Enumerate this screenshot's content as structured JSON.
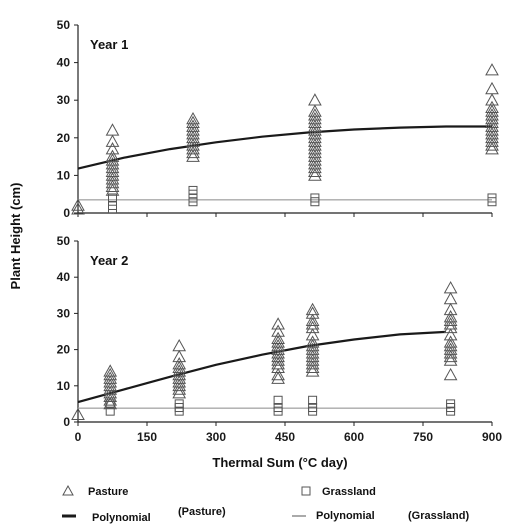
{
  "chart_data": {
    "type": "scatter",
    "xlabel": "Thermal Sum (°C day)",
    "ylabel": "Plant Height (cm)",
    "xlim": [
      0,
      900
    ],
    "ylim": [
      0,
      50
    ],
    "xticks": [
      "0",
      "150",
      "300",
      "450",
      "600",
      "750",
      "900"
    ],
    "yticks": [
      "0",
      "10",
      "20",
      "30",
      "40",
      "50"
    ],
    "panels": [
      {
        "title": "Year 1",
        "series": [
          {
            "name": "Pasture",
            "marker": "triangle",
            "points": [
              [
                0,
                2
              ],
              [
                0,
                1
              ],
              [
                75,
                22
              ],
              [
                75,
                19
              ],
              [
                75,
                17
              ],
              [
                75,
                15
              ],
              [
                75,
                14
              ],
              [
                75,
                13
              ],
              [
                75,
                12
              ],
              [
                75,
                11
              ],
              [
                75,
                10
              ],
              [
                75,
                9
              ],
              [
                75,
                8
              ],
              [
                75,
                7
              ],
              [
                75,
                6
              ],
              [
                250,
                25
              ],
              [
                250,
                24
              ],
              [
                250,
                23
              ],
              [
                250,
                22
              ],
              [
                250,
                21
              ],
              [
                250,
                20
              ],
              [
                250,
                19
              ],
              [
                250,
                18
              ],
              [
                250,
                17
              ],
              [
                250,
                16
              ],
              [
                250,
                15
              ],
              [
                515,
                30
              ],
              [
                515,
                27
              ],
              [
                515,
                26
              ],
              [
                515,
                25
              ],
              [
                515,
                24
              ],
              [
                515,
                23
              ],
              [
                515,
                22
              ],
              [
                515,
                21
              ],
              [
                515,
                20
              ],
              [
                515,
                19
              ],
              [
                515,
                18
              ],
              [
                515,
                17
              ],
              [
                515,
                16
              ],
              [
                515,
                15
              ],
              [
                515,
                14
              ],
              [
                515,
                13
              ],
              [
                515,
                12
              ],
              [
                515,
                11
              ],
              [
                515,
                10
              ],
              [
                900,
                38
              ],
              [
                900,
                33
              ],
              [
                900,
                30
              ],
              [
                900,
                28
              ],
              [
                900,
                27
              ],
              [
                900,
                26
              ],
              [
                900,
                25
              ],
              [
                900,
                24
              ],
              [
                900,
                23
              ],
              [
                900,
                22
              ],
              [
                900,
                21
              ],
              [
                900,
                20
              ],
              [
                900,
                19
              ],
              [
                900,
                18
              ],
              [
                900,
                17
              ]
            ]
          },
          {
            "name": "Grassland",
            "marker": "square",
            "points": [
              [
                75,
                4
              ],
              [
                75,
                2
              ],
              [
                75,
                1
              ],
              [
                250,
                6
              ],
              [
                250,
                5
              ],
              [
                250,
                4
              ],
              [
                250,
                3
              ],
              [
                515,
                4
              ],
              [
                515,
                3
              ],
              [
                900,
                4
              ],
              [
                900,
                3
              ]
            ]
          }
        ],
        "fits": [
          {
            "name": "Polynomial (Pasture)",
            "x": [
              0,
              100,
              200,
              300,
              400,
              500,
              600,
              700,
              800,
              900
            ],
            "y": [
              11.8,
              14.7,
              17.0,
              18.8,
              20.3,
              21.4,
              22.2,
              22.7,
              23.0,
              23.0
            ]
          },
          {
            "name": "Polynomial (Grassland)",
            "x": [
              0,
              900
            ],
            "y": [
              3.5,
              3.5
            ]
          }
        ]
      },
      {
        "title": "Year 2",
        "series": [
          {
            "name": "Pasture",
            "marker": "triangle",
            "points": [
              [
                0,
                2
              ],
              [
                70,
                14
              ],
              [
                70,
                13
              ],
              [
                70,
                12
              ],
              [
                70,
                11
              ],
              [
                70,
                10
              ],
              [
                70,
                9
              ],
              [
                70,
                8
              ],
              [
                70,
                7
              ],
              [
                70,
                6
              ],
              [
                70,
                5
              ],
              [
                220,
                21
              ],
              [
                220,
                18
              ],
              [
                220,
                16
              ],
              [
                220,
                15
              ],
              [
                220,
                14
              ],
              [
                220,
                13
              ],
              [
                220,
                12
              ],
              [
                220,
                11
              ],
              [
                220,
                10
              ],
              [
                220,
                9
              ],
              [
                220,
                8
              ],
              [
                435,
                27
              ],
              [
                435,
                25
              ],
              [
                435,
                23
              ],
              [
                435,
                22
              ],
              [
                435,
                21
              ],
              [
                435,
                20
              ],
              [
                435,
                19
              ],
              [
                435,
                18
              ],
              [
                435,
                17
              ],
              [
                435,
                16
              ],
              [
                435,
                15
              ],
              [
                435,
                13
              ],
              [
                435,
                12
              ],
              [
                510,
                31
              ],
              [
                510,
                30
              ],
              [
                510,
                28
              ],
              [
                510,
                27
              ],
              [
                510,
                26
              ],
              [
                510,
                24
              ],
              [
                510,
                22
              ],
              [
                510,
                21
              ],
              [
                510,
                20
              ],
              [
                510,
                19
              ],
              [
                510,
                18
              ],
              [
                510,
                17
              ],
              [
                510,
                16
              ],
              [
                510,
                15
              ],
              [
                510,
                14
              ],
              [
                810,
                37
              ],
              [
                810,
                34
              ],
              [
                810,
                31
              ],
              [
                810,
                29
              ],
              [
                810,
                28
              ],
              [
                810,
                27
              ],
              [
                810,
                26
              ],
              [
                810,
                24
              ],
              [
                810,
                22
              ],
              [
                810,
                21
              ],
              [
                810,
                20
              ],
              [
                810,
                19
              ],
              [
                810,
                18
              ],
              [
                810,
                17
              ],
              [
                810,
                13
              ]
            ]
          },
          {
            "name": "Grassland",
            "marker": "square",
            "points": [
              [
                70,
                5
              ],
              [
                70,
                3
              ],
              [
                220,
                5
              ],
              [
                220,
                4
              ],
              [
                220,
                3
              ],
              [
                435,
                6
              ],
              [
                435,
                4
              ],
              [
                435,
                3
              ],
              [
                510,
                6
              ],
              [
                510,
                4
              ],
              [
                510,
                3
              ],
              [
                810,
                5
              ],
              [
                810,
                4
              ],
              [
                810,
                3
              ]
            ]
          }
        ],
        "fits": [
          {
            "name": "Polynomial (Pasture)",
            "x": [
              0,
              100,
              200,
              300,
              400,
              500,
              600,
              700,
              800
            ],
            "y": [
              5.5,
              9.0,
              12.5,
              15.8,
              18.6,
              21.0,
              22.8,
              24.2,
              24.9
            ]
          },
          {
            "name": "Polynomial (Grassland)",
            "x": [
              0,
              810
            ],
            "y": [
              3.8,
              3.8
            ]
          }
        ]
      }
    ],
    "legend": [
      {
        "label": "Pasture",
        "marker": "triangle"
      },
      {
        "label": "Grassland",
        "marker": "square"
      },
      {
        "label": "Polynomial",
        "label2": "(Pasture)",
        "marker": "dark-line"
      },
      {
        "label": "Polynomial",
        "label2": "(Grassland)",
        "marker": "light-line"
      }
    ],
    "legend_position": "bottom",
    "colors": {
      "pasture_marker": "#555555",
      "grassland_marker": "#555555",
      "pasture_fit": "#1a1a1a",
      "grassland_fit": "#aaaaaa"
    }
  }
}
